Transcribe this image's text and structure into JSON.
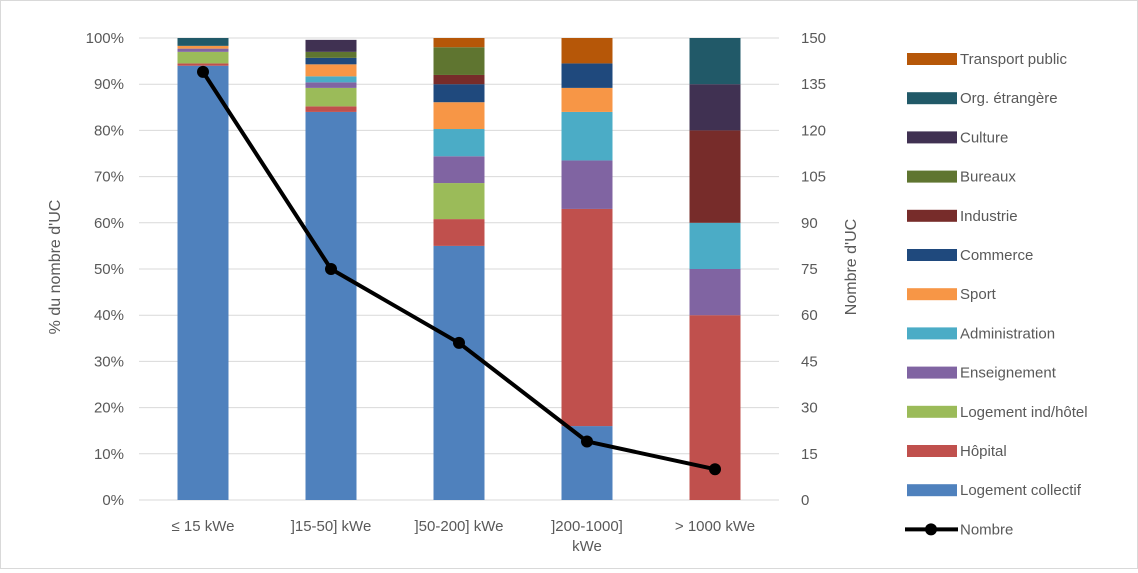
{
  "chart_data": {
    "type": "bar",
    "stacked": true,
    "percent_stacked": true,
    "categories": [
      "≤ 15 kWe",
      "]15-50] kWe",
      "]50-200] kWe",
      "]200-1000] kWe",
      "> 1000 kWe"
    ],
    "category_lines": [
      [
        "≤ 15 kWe"
      ],
      [
        "]15-50] kWe"
      ],
      [
        "]50-200] kWe"
      ],
      [
        "]200-1000]",
        "kWe"
      ],
      [
        "> 1000 kWe"
      ]
    ],
    "ylabel": "% du nombre d'UC",
    "y2label": "Nombre d'UC",
    "ylim": [
      0,
      1
    ],
    "y_ticks": [
      "0%",
      "10%",
      "20%",
      "30%",
      "40%",
      "50%",
      "60%",
      "70%",
      "80%",
      "90%",
      "100%"
    ],
    "y2lim": [
      0,
      150
    ],
    "y2_ticks": [
      "0",
      "15",
      "30",
      "45",
      "60",
      "75",
      "90",
      "105",
      "120",
      "135",
      "150"
    ],
    "grid": true,
    "legend_position": "right",
    "series": [
      {
        "name": "Logement collectif",
        "color": "#4F81BD",
        "values": [
          0.94,
          0.84,
          0.55,
          0.16,
          0.0
        ]
      },
      {
        "name": "Hôpital",
        "color": "#C0504D",
        "values": [
          0.005,
          0.012,
          0.058,
          0.47,
          0.4
        ]
      },
      {
        "name": "Logement ind/hôtel",
        "color": "#9BBB59",
        "values": [
          0.025,
          0.04,
          0.078,
          0.0,
          0.0
        ]
      },
      {
        "name": "Enseignement",
        "color": "#8064A2",
        "values": [
          0.007,
          0.012,
          0.058,
          0.105,
          0.1
        ]
      },
      {
        "name": "Administration",
        "color": "#4BACC6",
        "values": [
          0.0,
          0.013,
          0.059,
          0.105,
          0.1
        ]
      },
      {
        "name": "Sport",
        "color": "#F79646",
        "values": [
          0.006,
          0.026,
          0.058,
          0.052,
          0.0
        ]
      },
      {
        "name": "Commerce",
        "color": "#1F497D",
        "values": [
          0.0,
          0.014,
          0.039,
          0.053,
          0.0
        ]
      },
      {
        "name": "Industrie",
        "color": "#772C2A",
        "values": [
          0.0,
          0.0,
          0.02,
          0.0,
          0.2
        ]
      },
      {
        "name": "Bureaux",
        "color": "#5F7530",
        "values": [
          0.0,
          0.013,
          0.06,
          0.0,
          0.0
        ]
      },
      {
        "name": "Culture",
        "color": "#403152",
        "values": [
          0.0,
          0.026,
          0.0,
          0.0,
          0.1
        ]
      },
      {
        "name": "Org. étrangère",
        "color": "#215968",
        "values": [
          0.017,
          0.0,
          0.0,
          0.0,
          0.1
        ]
      },
      {
        "name": "Transport public",
        "color": "#B65708",
        "values": [
          0.0,
          0.0,
          0.02,
          0.055,
          0.0
        ]
      }
    ],
    "line_series": {
      "name": "Nombre",
      "color": "#000000",
      "axis": "secondary",
      "values": [
        139,
        75,
        51,
        19,
        10
      ]
    },
    "legend": [
      "Transport public",
      "Org. étrangère",
      "Culture",
      "Bureaux",
      "Industrie",
      "Commerce",
      "Sport",
      "Administration",
      "Enseignement",
      "Logement ind/hôtel",
      "Hôpital",
      "Logement collectif",
      "Nombre"
    ]
  }
}
